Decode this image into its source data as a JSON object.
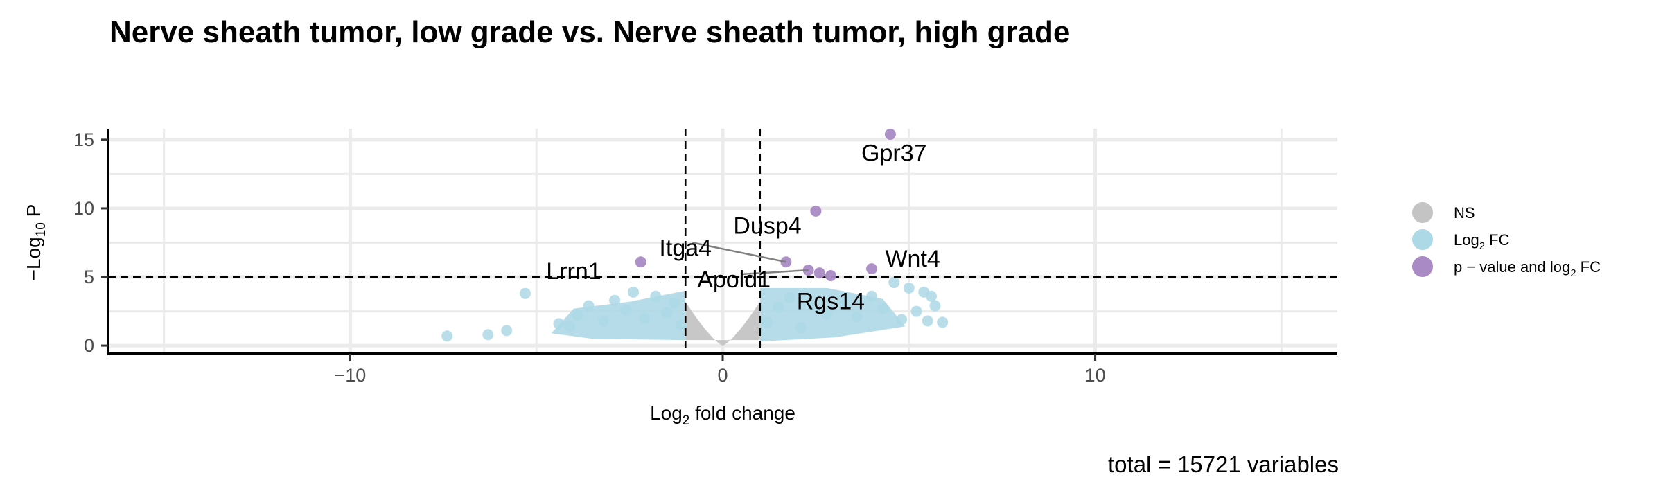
{
  "title": "Nerve sheath tumor, low grade vs. Nerve sheath tumor, high grade",
  "caption": "total = 15721 variables",
  "chart_data": {
    "type": "scatter",
    "xlabel": "Log2 fold change",
    "ylabel": "−Log10 P",
    "xlim": [
      -16.5,
      16.5
    ],
    "ylim": [
      -0.6,
      15.8
    ],
    "x_ticks": [
      -10,
      0,
      10
    ],
    "x_tick_labels": [
      "−10",
      "0",
      "10"
    ],
    "y_ticks": [
      0,
      5,
      10,
      15
    ],
    "y_tick_labels": [
      "0",
      "5",
      "10",
      "15"
    ],
    "grid": true,
    "fc_cutoff": 1,
    "p_cutoff": 5,
    "colors": {
      "NS": "#c4c4c4",
      "log2FC": "#add8e6",
      "both": "#a98ac4",
      "cutoff_line": "#000000"
    },
    "legend": {
      "position": "right",
      "entries": [
        {
          "key": "NS",
          "label": "NS",
          "color": "#c4c4c4"
        },
        {
          "key": "log2FC",
          "label": "Log2 FC",
          "color": "#add8e6"
        },
        {
          "key": "both",
          "label": "p − value and log2 FC",
          "color": "#a98ac4"
        }
      ]
    },
    "significant_points": [
      {
        "x": 4.5,
        "y": 15.4
      },
      {
        "x": 2.5,
        "y": 9.8
      },
      {
        "x": 1.7,
        "y": 6.1
      },
      {
        "x": 2.3,
        "y": 5.5
      },
      {
        "x": 2.6,
        "y": 5.3
      },
      {
        "x": 2.9,
        "y": 5.1
      },
      {
        "x": 4.0,
        "y": 5.6
      },
      {
        "x": -2.2,
        "y": 6.1
      }
    ],
    "fc_points": [
      {
        "x": -7.4,
        "y": 0.7
      },
      {
        "x": -6.3,
        "y": 0.8
      },
      {
        "x": -5.8,
        "y": 1.1
      },
      {
        "x": -5.3,
        "y": 3.8
      },
      {
        "x": -4.4,
        "y": 1.6
      },
      {
        "x": -4.1,
        "y": 1.4
      },
      {
        "x": -3.9,
        "y": 2.2
      },
      {
        "x": -3.6,
        "y": 2.9
      },
      {
        "x": -3.2,
        "y": 1.8
      },
      {
        "x": -2.9,
        "y": 3.3
      },
      {
        "x": -2.6,
        "y": 2.6
      },
      {
        "x": -2.4,
        "y": 3.9
      },
      {
        "x": -2.1,
        "y": 2.0
      },
      {
        "x": -1.8,
        "y": 3.6
      },
      {
        "x": -1.5,
        "y": 2.4
      },
      {
        "x": -1.3,
        "y": 3.1
      },
      {
        "x": -1.1,
        "y": 1.5
      },
      {
        "x": 1.2,
        "y": 1.7
      },
      {
        "x": 1.5,
        "y": 2.8
      },
      {
        "x": 1.8,
        "y": 3.5
      },
      {
        "x": 2.1,
        "y": 1.3
      },
      {
        "x": 2.4,
        "y": 3.0
      },
      {
        "x": 2.8,
        "y": 2.3
      },
      {
        "x": 3.2,
        "y": 3.3
      },
      {
        "x": 3.6,
        "y": 2.1
      },
      {
        "x": 4.0,
        "y": 3.6
      },
      {
        "x": 4.3,
        "y": 2.7
      },
      {
        "x": 4.6,
        "y": 4.6
      },
      {
        "x": 4.8,
        "y": 1.9
      },
      {
        "x": 5.0,
        "y": 4.2
      },
      {
        "x": 5.2,
        "y": 2.5
      },
      {
        "x": 5.4,
        "y": 3.9
      },
      {
        "x": 5.5,
        "y": 1.8
      },
      {
        "x": 5.6,
        "y": 3.6
      },
      {
        "x": 5.7,
        "y": 2.9
      },
      {
        "x": 5.9,
        "y": 1.7
      }
    ],
    "labels": [
      {
        "text": "Gpr37",
        "x": 4.5,
        "y": 15.4,
        "lx": 4.6,
        "ly": 13.9,
        "leader": false
      },
      {
        "text": "Dusp4",
        "x": 2.5,
        "y": 9.8,
        "lx": 1.2,
        "ly": 8.6,
        "leader": false
      },
      {
        "text": "Itga4",
        "x": 1.7,
        "y": 6.1,
        "lx": -1.0,
        "ly": 7.0,
        "leader": true
      },
      {
        "text": "Lrrn1",
        "x": -2.2,
        "y": 6.1,
        "lx": -4.0,
        "ly": 5.3,
        "leader": false
      },
      {
        "text": "Apold1",
        "x": 2.3,
        "y": 5.5,
        "lx": 0.3,
        "ly": 4.7,
        "leader": true
      },
      {
        "text": "Rgs14",
        "x": 2.9,
        "y": 5.1,
        "lx": 2.9,
        "ly": 3.1,
        "leader": false
      },
      {
        "text": "Wnt4",
        "x": 4.0,
        "y": 5.6,
        "lx": 5.1,
        "ly": 6.2,
        "leader": false
      }
    ]
  }
}
